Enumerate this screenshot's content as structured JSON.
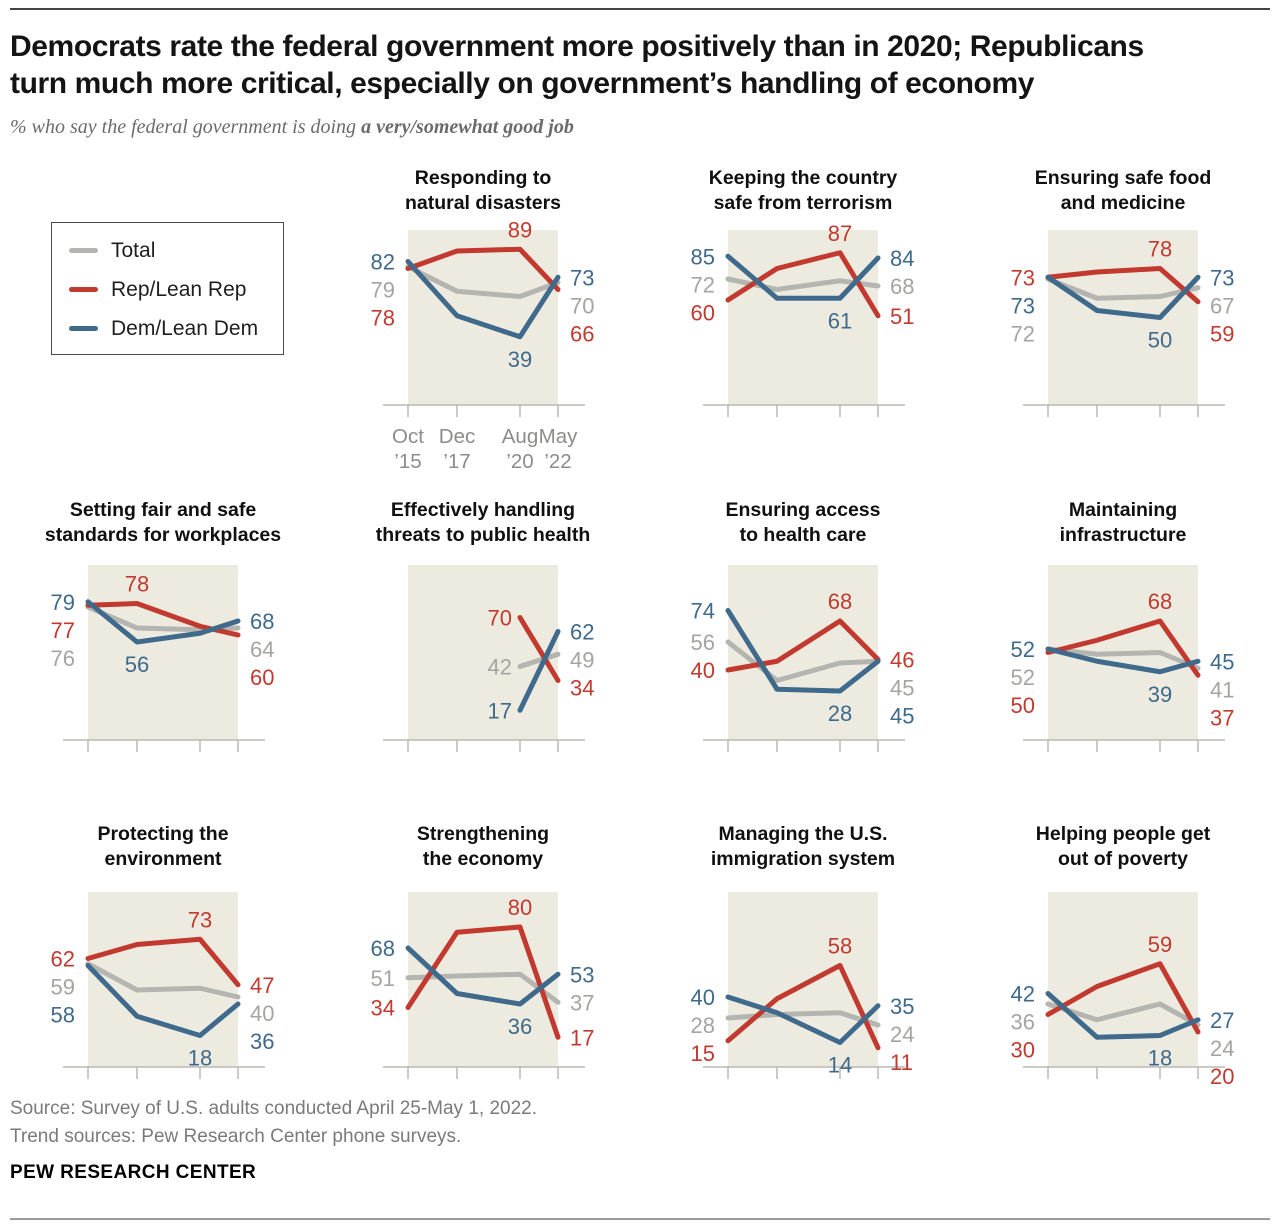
{
  "header": {
    "title": "Democrats rate the federal government more positively than in 2020; Republicans\nturn much more critical, especially on government’s handling of economy",
    "subtitle_prefix": "% who say the federal government is doing ",
    "subtitle_bold": "a very/somewhat good job"
  },
  "legend": {
    "items": [
      {
        "label": "Total",
        "color": "#b4b4b0"
      },
      {
        "label": "Rep/Lean Rep",
        "color": "#c23a2f"
      },
      {
        "label": "Dem/Lean Dem",
        "color": "#3f6a8c"
      }
    ]
  },
  "colors": {
    "total": "#b4b4b0",
    "total_label": "#a4a4a0",
    "rep": "#c23a2f",
    "dem": "#3f6a8c",
    "plot_bg": "#edebe0",
    "axis": "#b9b9b4",
    "tick_text": "#8c8c8a"
  },
  "chart_data": {
    "type": "line",
    "categories": [
      "Oct ’15",
      "Dec ’17",
      "Aug ’20",
      "May ’22"
    ],
    "ylim": [
      0,
      100
    ],
    "grid": false,
    "legend_position": "top-left",
    "series_names": [
      "Total",
      "Rep/Lean Rep",
      "Dem/Lean Dem"
    ],
    "charts": [
      {
        "id": "natural-disasters",
        "title": "Responding to\nnatural disasters",
        "row": 0,
        "col": 1,
        "show_x_labels": true,
        "series": {
          "total": [
            79,
            65,
            62,
            70
          ],
          "rep": [
            78,
            88,
            89,
            66
          ],
          "dem": [
            82,
            51,
            39,
            73
          ]
        },
        "inner_labels": [
          {
            "series": "rep",
            "index": 2,
            "pos": "above"
          },
          {
            "series": "dem",
            "index": 2,
            "pos": "below"
          }
        ]
      },
      {
        "id": "terrorism",
        "title": "Keeping the country\nsafe from terrorism",
        "row": 0,
        "col": 2,
        "series": {
          "total": [
            72,
            66,
            71,
            68
          ],
          "rep": [
            60,
            78,
            87,
            51
          ],
          "dem": [
            85,
            61,
            61,
            84
          ]
        },
        "inner_labels": [
          {
            "series": "rep",
            "index": 2,
            "pos": "above"
          },
          {
            "series": "dem",
            "index": 2,
            "pos": "below"
          }
        ]
      },
      {
        "id": "safe-food-medicine",
        "title": "Ensuring safe food\nand medicine",
        "row": 0,
        "col": 3,
        "series": {
          "total": [
            72,
            61,
            62,
            67
          ],
          "rep": [
            73,
            76,
            78,
            59
          ],
          "dem": [
            73,
            54,
            50,
            73
          ]
        },
        "inner_labels": [
          {
            "series": "rep",
            "index": 2,
            "pos": "above"
          },
          {
            "series": "dem",
            "index": 2,
            "pos": "below"
          }
        ],
        "left_order": [
          "rep",
          "dem",
          "total"
        ]
      },
      {
        "id": "workplace-standards",
        "title": "Setting fair and safe\nstandards for workplaces",
        "row": 1,
        "col": 0,
        "series": {
          "total": [
            76,
            64,
            63,
            64
          ],
          "rep": [
            77,
            78,
            65,
            60
          ],
          "dem": [
            79,
            56,
            61,
            68
          ]
        },
        "inner_labels": [
          {
            "series": "rep",
            "index": 1,
            "pos": "above"
          },
          {
            "series": "dem",
            "index": 1,
            "pos": "below"
          }
        ]
      },
      {
        "id": "public-health",
        "title": "Effectively handling\nthreats to public health",
        "row": 1,
        "col": 1,
        "series": {
          "total": [
            null,
            null,
            42,
            49
          ],
          "rep": [
            null,
            null,
            70,
            34
          ],
          "dem": [
            null,
            null,
            17,
            62
          ]
        },
        "inner_labels": []
      },
      {
        "id": "health-care-access",
        "title": "Ensuring access\nto health care",
        "row": 1,
        "col": 2,
        "series": {
          "total": [
            56,
            34,
            44,
            45
          ],
          "rep": [
            40,
            45,
            68,
            46
          ],
          "dem": [
            74,
            29,
            28,
            45
          ]
        },
        "inner_labels": [
          {
            "series": "rep",
            "index": 2,
            "pos": "above"
          },
          {
            "series": "dem",
            "index": 2,
            "pos": "below"
          }
        ],
        "right_order": [
          "rep",
          "total",
          "dem"
        ]
      },
      {
        "id": "infrastructure",
        "title": "Maintaining\ninfrastructure",
        "row": 1,
        "col": 3,
        "series": {
          "total": [
            52,
            49,
            50,
            41
          ],
          "rep": [
            50,
            57,
            68,
            37
          ],
          "dem": [
            52,
            45,
            39,
            45
          ]
        },
        "inner_labels": [
          {
            "series": "rep",
            "index": 2,
            "pos": "above"
          },
          {
            "series": "dem",
            "index": 2,
            "pos": "below"
          }
        ],
        "left_order": [
          "dem",
          "total",
          "rep"
        ]
      },
      {
        "id": "environment",
        "title": "Protecting the\nenvironment",
        "row": 2,
        "col": 0,
        "series": {
          "total": [
            59,
            44,
            45,
            40
          ],
          "rep": [
            62,
            70,
            73,
            47
          ],
          "dem": [
            58,
            29,
            18,
            36
          ]
        },
        "inner_labels": [
          {
            "series": "rep",
            "index": 2,
            "pos": "above"
          },
          {
            "series": "dem",
            "index": 2,
            "pos": "below"
          }
        ]
      },
      {
        "id": "economy",
        "title": "Strengthening\nthe economy",
        "row": 2,
        "col": 1,
        "series": {
          "total": [
            51,
            52,
            53,
            37
          ],
          "rep": [
            34,
            77,
            80,
            17
          ],
          "dem": [
            68,
            42,
            36,
            53
          ]
        },
        "inner_labels": [
          {
            "series": "rep",
            "index": 2,
            "pos": "above"
          },
          {
            "series": "dem",
            "index": 2,
            "pos": "below"
          }
        ]
      },
      {
        "id": "immigration",
        "title": "Managing the U.S.\nimmigration system",
        "row": 2,
        "col": 2,
        "series": {
          "total": [
            28,
            30,
            31,
            24
          ],
          "rep": [
            15,
            39,
            58,
            11
          ],
          "dem": [
            40,
            31,
            14,
            35
          ]
        },
        "inner_labels": [
          {
            "series": "rep",
            "index": 2,
            "pos": "above"
          },
          {
            "series": "dem",
            "index": 2,
            "pos": "below"
          }
        ]
      },
      {
        "id": "poverty",
        "title": "Helping people get\nout of poverty",
        "row": 2,
        "col": 3,
        "series": {
          "total": [
            36,
            27,
            36,
            24
          ],
          "rep": [
            30,
            46,
            59,
            20
          ],
          "dem": [
            42,
            17,
            18,
            27
          ]
        },
        "inner_labels": [
          {
            "series": "rep",
            "index": 2,
            "pos": "above"
          },
          {
            "series": "dem",
            "index": 2,
            "pos": "below"
          }
        ]
      }
    ]
  },
  "footer": {
    "source_line1": "Source: Survey of U.S. adults conducted April 25-May 1, 2022.",
    "source_line2": "Trend sources: Pew Research Center phone surveys.",
    "brand": "PEW RESEARCH CENTER"
  }
}
